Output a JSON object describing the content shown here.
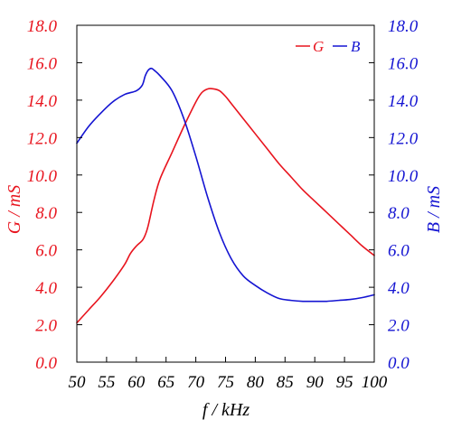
{
  "chart_data": {
    "type": "line",
    "xlabel": "f / kHz",
    "ylabel_left": "G / mS",
    "ylabel_right": "B / mS",
    "xlim": [
      50,
      100
    ],
    "ylim_left": [
      0,
      18
    ],
    "ylim_right": [
      0,
      18
    ],
    "x_ticks": [
      "50",
      "55",
      "60",
      "65",
      "70",
      "75",
      "80",
      "85",
      "90",
      "95",
      "100"
    ],
    "y_ticks": [
      "0.0",
      "2.0",
      "4.0",
      "6.0",
      "8.0",
      "10.0",
      "12.0",
      "14.0",
      "16.0",
      "18.0"
    ],
    "grid": false,
    "legend_position": "top-right",
    "colors": {
      "G": "#e8141e",
      "B": "#1414d2"
    },
    "series": [
      {
        "name": "G",
        "axis": "left",
        "x": [
          50,
          52,
          54,
          56,
          58,
          59,
          60,
          61,
          61.5,
          62,
          63,
          64,
          66,
          68,
          70,
          71,
          72,
          73,
          74,
          75,
          76,
          78,
          80,
          82,
          84,
          86,
          88,
          90,
          92,
          94,
          96,
          98,
          100
        ],
        "values": [
          2.1,
          2.8,
          3.5,
          4.3,
          5.2,
          5.8,
          6.2,
          6.5,
          6.8,
          7.3,
          8.7,
          9.8,
          11.2,
          12.6,
          13.9,
          14.4,
          14.6,
          14.6,
          14.5,
          14.2,
          13.8,
          13.0,
          12.2,
          11.4,
          10.6,
          9.9,
          9.2,
          8.6,
          8.0,
          7.4,
          6.8,
          6.2,
          5.7
        ]
      },
      {
        "name": "B",
        "axis": "right",
        "x": [
          50,
          52,
          54,
          56,
          58,
          60,
          61,
          61.5,
          62,
          62.5,
          63,
          64,
          66,
          68,
          70,
          72,
          74,
          76,
          78,
          80,
          82,
          84,
          86,
          88,
          90,
          92,
          94,
          96,
          98,
          100
        ],
        "values": [
          11.7,
          12.6,
          13.3,
          13.9,
          14.3,
          14.5,
          14.8,
          15.3,
          15.6,
          15.7,
          15.6,
          15.3,
          14.5,
          13.0,
          11.0,
          8.8,
          6.9,
          5.5,
          4.6,
          4.1,
          3.7,
          3.4,
          3.3,
          3.25,
          3.25,
          3.25,
          3.3,
          3.35,
          3.45,
          3.6
        ]
      }
    ]
  }
}
